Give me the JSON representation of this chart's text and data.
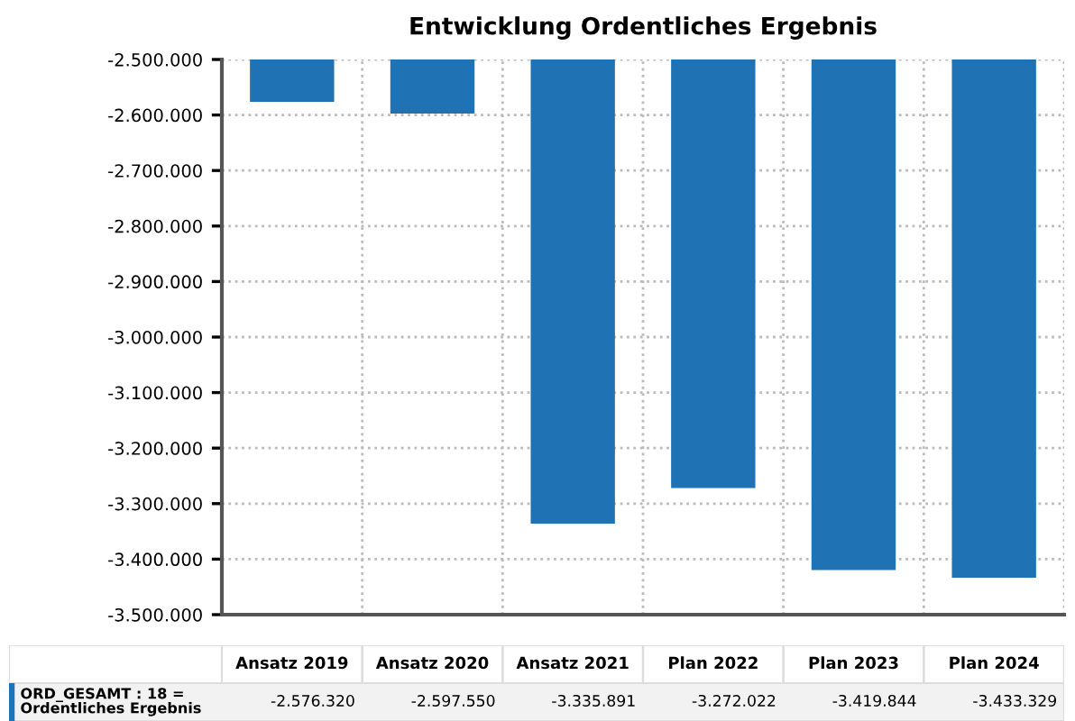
{
  "chart_data": {
    "type": "bar",
    "title": "Entwicklung Ordentliches Ergebnis",
    "categories": [
      "Ansatz 2019",
      "Ansatz 2020",
      "Ansatz 2021",
      "Plan 2022",
      "Plan 2023",
      "Plan 2024"
    ],
    "series": [
      {
        "name": "ORD_GESAMT : 18 = Ordentliches Ergebnis",
        "color": "#1f72b4",
        "values": [
          -2576320,
          -2597550,
          -3335891,
          -3272022,
          -3419844,
          -3433329
        ],
        "value_labels": [
          "-2.576.320",
          "-2.597.550",
          "-3.335.891",
          "-3.272.022",
          "-3.419.844",
          "-3.433.329"
        ]
      }
    ],
    "ylim": [
      -3500000,
      -2500000
    ],
    "yticks": [
      {
        "value": -3500000,
        "label": "-3.500.000"
      },
      {
        "value": -3400000,
        "label": "-3.400.000"
      },
      {
        "value": -3300000,
        "label": "-3.300.000"
      },
      {
        "value": -3200000,
        "label": "-3.200.000"
      },
      {
        "value": -3100000,
        "label": "-3.100.000"
      },
      {
        "value": -3000000,
        "label": "-3.000.000"
      },
      {
        "value": -2900000,
        "label": "-2.900.000"
      },
      {
        "value": -2800000,
        "label": "-2.800.000"
      },
      {
        "value": -2700000,
        "label": "-2.700.000"
      },
      {
        "value": -2600000,
        "label": "-2.600.000"
      },
      {
        "value": -2500000,
        "label": "-2.500.000"
      }
    ],
    "grid": true,
    "legend": "bottom"
  }
}
